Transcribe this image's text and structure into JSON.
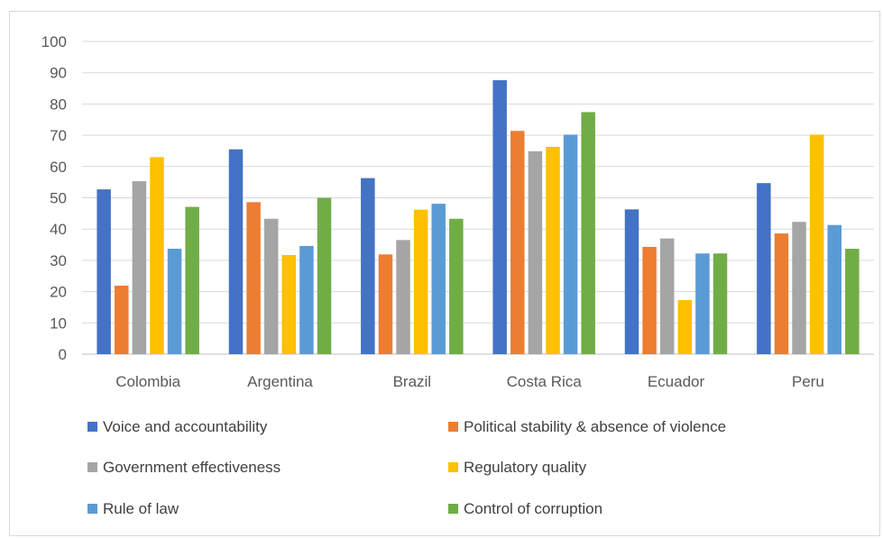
{
  "chart_data": {
    "type": "bar",
    "title": "",
    "xlabel": "",
    "ylabel": "",
    "ylim": [
      0,
      100
    ],
    "yticks": [
      "0",
      "10",
      "20",
      "30",
      "40",
      "50",
      "60",
      "70",
      "80",
      "90",
      "100"
    ],
    "grid": true,
    "legend_position": "bottom",
    "categories": [
      "Colombia",
      "Argentina",
      "Brazil",
      "Costa Rica",
      "Ecuador",
      "Peru"
    ],
    "series": [
      {
        "name": "Voice and accountability",
        "color": "#4472C4",
        "values": [
          52.7,
          65.5,
          56.3,
          87.6,
          46.3,
          54.7
        ]
      },
      {
        "name": "Political stability & absence of violence",
        "color": "#ED7D31",
        "values": [
          21.9,
          48.6,
          31.9,
          71.4,
          34.3,
          38.6
        ]
      },
      {
        "name": "Government effectiveness",
        "color": "#A5A5A5",
        "values": [
          55.3,
          43.3,
          36.5,
          64.9,
          37.0,
          42.3
        ]
      },
      {
        "name": "Regulatory quality",
        "color": "#FFC000",
        "values": [
          63.0,
          31.7,
          46.2,
          66.3,
          17.3,
          70.2
        ]
      },
      {
        "name": "Rule of law",
        "color": "#5B9BD5",
        "values": [
          33.7,
          34.6,
          48.1,
          70.2,
          32.2,
          41.3
        ]
      },
      {
        "name": "Control of corruption",
        "color": "#70AD47",
        "values": [
          47.1,
          50.0,
          43.3,
          77.4,
          32.2,
          33.7
        ]
      }
    ]
  }
}
